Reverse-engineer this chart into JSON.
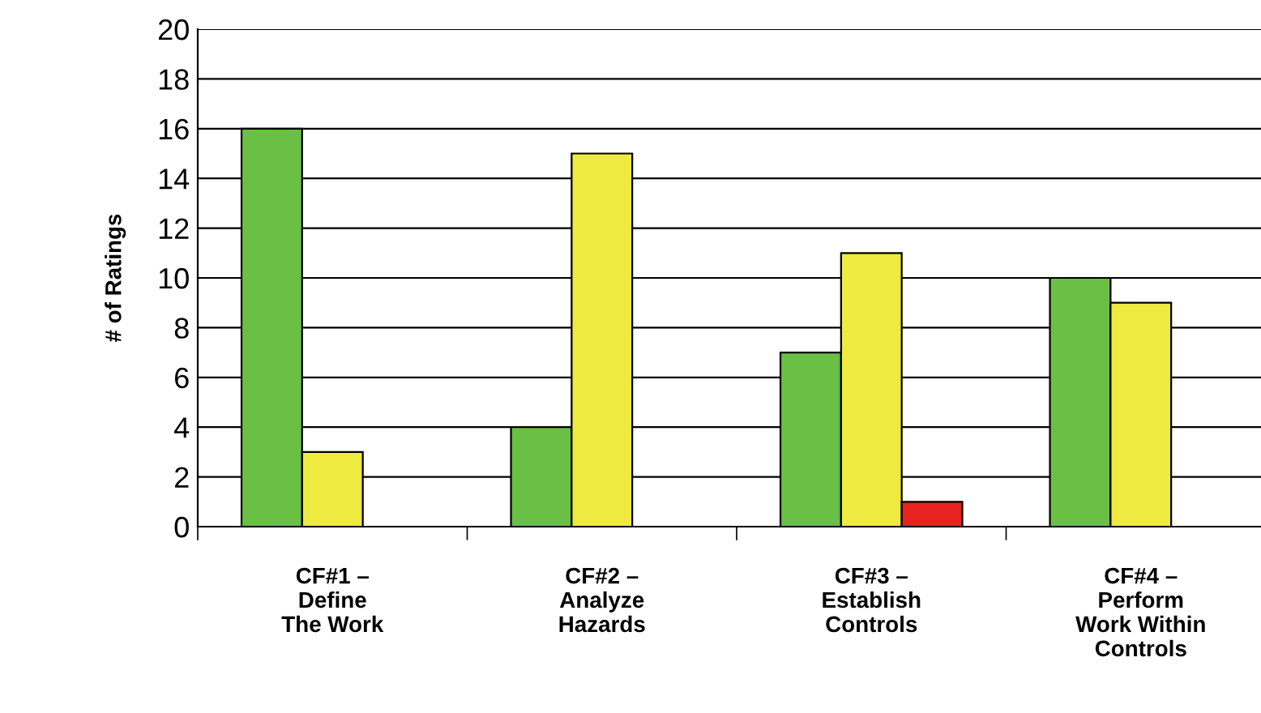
{
  "chart_data": {
    "type": "bar",
    "ylabel": "# of Ratings",
    "categories": [
      "CF#1 –\nDefine\nThe Work",
      "CF#2 –\nAnalyze\nHazards",
      "CF#3 –\nEstablish\nControls",
      "CF#4 –\nPerform\nWork Within\nControls"
    ],
    "series": [
      {
        "color": "#6abf45",
        "values": [
          16,
          4,
          7,
          10
        ]
      },
      {
        "color": "#eeea3f",
        "values": [
          3,
          15,
          11,
          9
        ]
      },
      {
        "color": "#e8221e",
        "values": [
          null,
          null,
          1,
          null
        ]
      }
    ],
    "ylim": [
      0,
      20
    ],
    "yticks": [
      0,
      2,
      4,
      6,
      8,
      10,
      12,
      14,
      16,
      18,
      20
    ],
    "grid": "y"
  }
}
